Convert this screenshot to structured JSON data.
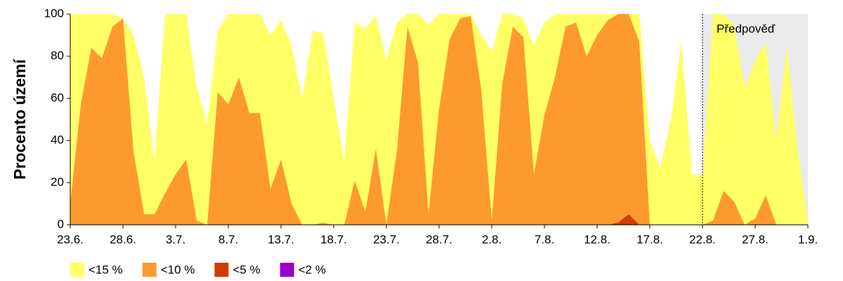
{
  "chart_data": {
    "type": "area",
    "ylabel": "Procento území",
    "categories": [
      "23.6.",
      null,
      null,
      null,
      null,
      "28.6.",
      null,
      null,
      null,
      null,
      "3.7.",
      null,
      null,
      null,
      null,
      "8.7.",
      null,
      null,
      null,
      null,
      "13.7.",
      null,
      null,
      null,
      null,
      "18.7.",
      null,
      null,
      null,
      null,
      "23.7.",
      null,
      null,
      null,
      null,
      "28.7.",
      null,
      null,
      null,
      null,
      "2.8.",
      null,
      null,
      null,
      null,
      "7.8.",
      null,
      null,
      null,
      null,
      "12.8.",
      null,
      null,
      null,
      null,
      "17.8.",
      null,
      null,
      null,
      null,
      "22.8.",
      null,
      null,
      null,
      null,
      "27.8.",
      null,
      null,
      null,
      null,
      "1.9."
    ],
    "series": [
      {
        "name": "<15 %",
        "color": "#ffff66",
        "values": [
          100,
          100,
          100,
          100,
          100,
          98,
          90,
          70,
          30,
          100,
          100,
          100,
          65,
          48,
          92,
          100,
          100,
          100,
          100,
          90,
          97,
          85,
          60,
          92,
          91,
          60,
          30,
          96,
          93,
          99,
          78,
          96,
          100,
          100,
          95,
          100,
          100,
          100,
          100,
          90,
          82,
          100,
          100,
          98,
          85,
          96,
          100,
          100,
          100,
          100,
          100,
          100,
          100,
          100,
          100,
          40,
          27,
          50,
          87,
          24,
          23,
          100,
          100,
          95,
          65,
          78,
          87,
          40,
          85,
          37,
          2
        ]
      },
      {
        "name": "<10 %",
        "color": "#fd9a2e",
        "values": [
          10,
          57,
          84,
          79,
          94,
          98,
          35,
          5,
          5,
          15,
          24,
          31,
          2,
          0,
          63,
          57,
          70,
          53,
          53,
          17,
          31,
          10,
          0,
          0,
          1,
          0,
          0,
          21,
          6,
          36,
          0,
          35,
          94,
          77,
          5,
          55,
          88,
          98,
          99,
          64,
          2,
          67,
          94,
          89,
          24,
          52,
          70,
          94,
          96,
          80,
          90,
          97,
          100,
          100,
          87,
          0,
          0,
          0,
          0,
          0,
          0,
          2,
          16,
          11,
          0,
          3,
          14,
          0,
          0,
          0,
          0
        ]
      },
      {
        "name": "<5 %",
        "color": "#d03c00",
        "values": [
          0,
          0,
          0,
          0,
          0,
          0,
          0,
          0,
          0,
          0,
          0,
          0,
          0,
          0,
          0,
          0,
          0,
          0,
          0,
          0,
          0,
          0,
          0,
          0,
          0,
          0,
          0,
          0,
          0,
          0,
          0,
          0,
          0,
          0,
          0,
          0,
          0,
          0,
          0,
          0,
          0,
          0,
          0,
          0,
          0,
          0,
          0,
          0,
          0,
          0,
          0,
          0,
          1,
          5,
          0,
          0,
          0,
          0,
          0,
          0,
          0,
          0,
          0,
          0,
          0,
          0,
          0,
          0,
          0,
          0,
          0
        ]
      },
      {
        "name": "<2 %",
        "color": "#9900cc",
        "values": [
          0,
          0,
          0,
          0,
          0,
          0,
          0,
          0,
          0,
          0,
          0,
          0,
          0,
          0,
          0,
          0,
          0,
          0,
          0,
          0,
          0,
          0,
          0,
          0,
          0,
          0,
          0,
          0,
          0,
          0,
          0,
          0,
          0,
          0,
          0,
          0,
          0,
          0,
          0,
          0,
          0,
          0,
          0,
          0,
          0,
          0,
          0,
          0,
          0,
          0,
          0,
          0,
          0,
          0,
          0,
          0,
          0,
          0,
          0,
          0,
          0,
          0,
          0,
          0,
          0,
          0,
          0,
          0,
          0,
          0,
          0
        ]
      }
    ],
    "ylim": [
      0,
      100
    ],
    "yticks": [
      0,
      20,
      40,
      60,
      80,
      100
    ],
    "forecast": {
      "label": "Předpověď",
      "start": 60,
      "color": "#ebebeb"
    }
  }
}
